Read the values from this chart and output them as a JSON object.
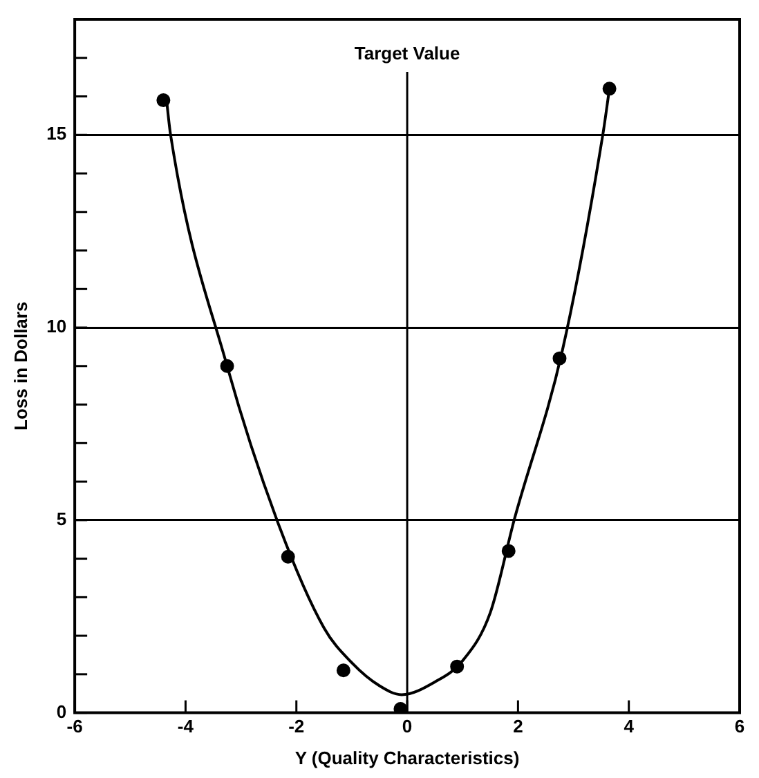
{
  "chart_data": {
    "type": "scatter",
    "xlabel": "Y (Quality Characteristics)",
    "ylabel": "Loss in Dollars",
    "xlim": [
      -6,
      6
    ],
    "xticks": [
      -6,
      -4,
      -2,
      0,
      2,
      4,
      6
    ],
    "ylim": [
      0,
      18
    ],
    "yticks": [
      0,
      {
        "value": 1,
        "label": null
      },
      {
        "value": 2,
        "label": null
      },
      {
        "value": 3,
        "label": null
      },
      {
        "value": 4,
        "label": null
      },
      5,
      {
        "value": 6,
        "label": null
      },
      {
        "value": 7,
        "label": null
      },
      {
        "value": 8,
        "label": null
      },
      {
        "value": 9,
        "label": null
      },
      10,
      {
        "value": 11,
        "label": null
      },
      {
        "value": 12,
        "label": null
      },
      {
        "value": 13,
        "label": null
      },
      {
        "value": 14,
        "label": null
      },
      15,
      {
        "value": 16,
        "label": null
      },
      {
        "value": 17,
        "label": null
      }
    ],
    "grid": "y",
    "legend": false,
    "marker": "circle",
    "ref_lines": [
      {
        "axis": "x",
        "value": 0,
        "label": "Target Value",
        "color": "#000000"
      }
    ],
    "series": [
      {
        "color": "#000000",
        "x": [
          -4.4,
          -3.25,
          -2.15,
          -1.15,
          -0.12,
          0.9,
          1.83,
          2.75,
          3.65
        ],
        "values": [
          15.9,
          9.0,
          4.05,
          1.1,
          0.1,
          1.2,
          4.2,
          9.2,
          16.2
        ]
      },
      {
        "type": "line",
        "color": "#000000",
        "marker": "none",
        "x": [
          -4.35,
          -4.27,
          -3.25,
          -2.35,
          -1.5,
          -1,
          -0.5,
          -0.1,
          0.5,
          1,
          1.5,
          1.93,
          2.8,
          3.53,
          3.65
        ],
        "values": [
          16,
          15,
          9.0,
          5,
          2.2,
          1.3,
          0.7,
          0.47,
          0.8,
          1.35,
          2.6,
          5,
          9.4,
          15,
          16.2
        ]
      }
    ]
  }
}
